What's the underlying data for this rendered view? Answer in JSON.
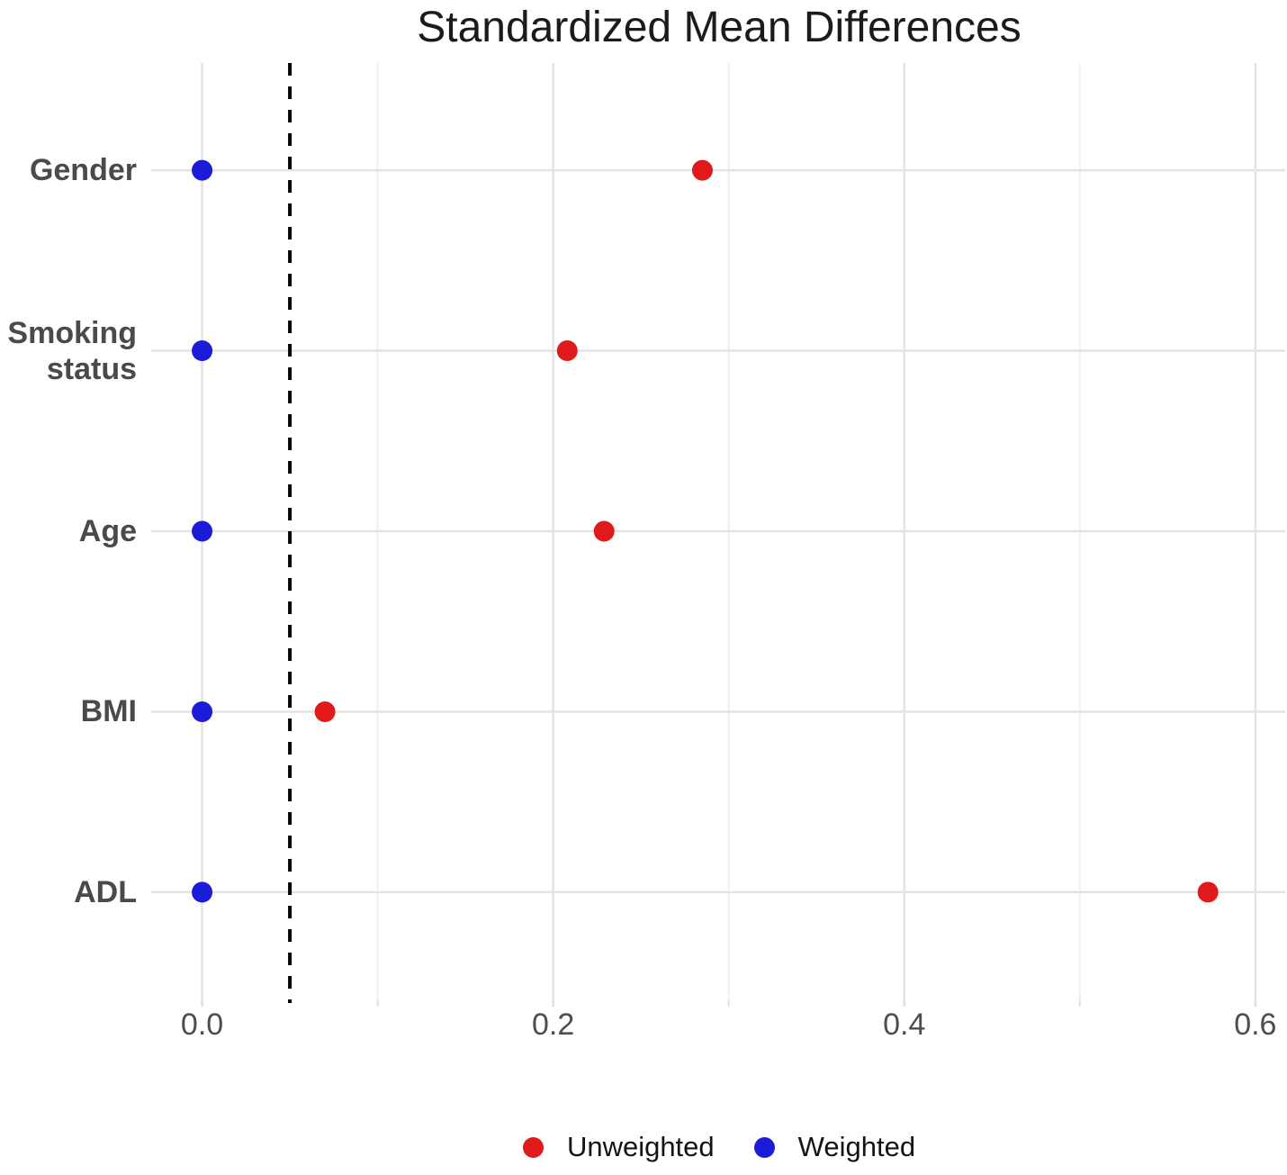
{
  "title": "Standardized Mean Differences",
  "colors": {
    "unweighted": "#e01a1b",
    "weighted": "#1b1bd8",
    "grid_major": "#e3e3e3",
    "grid_minor": "#f0f0f0",
    "axis_tick": "#e0e0e0",
    "threshold_line": "#000000",
    "axis_text": "#4d4d4d",
    "category_text": "#4a4a4a",
    "background": "#ffffff"
  },
  "chart_data": {
    "type": "scatter",
    "title": "Standardized Mean Differences",
    "orientation": "dot-plot-horizontal",
    "categories": [
      "Gender",
      "Smoking\nstatus",
      "Age",
      "BMI",
      "ADL"
    ],
    "series": [
      {
        "name": "Unweighted",
        "color_key": "unweighted",
        "values": [
          0.285,
          0.208,
          0.229,
          0.07,
          0.573
        ]
      },
      {
        "name": "Weighted",
        "color_key": "weighted",
        "values": [
          0.0,
          0.0,
          0.0,
          0.0,
          0.0
        ]
      }
    ],
    "x_axis": {
      "min": -0.029,
      "max": 0.617,
      "major_ticks": [
        0.0,
        0.2,
        0.4,
        0.6
      ],
      "tick_labels": [
        "0.0",
        "0.2",
        "0.4",
        "0.6"
      ],
      "minor_ticks": [
        0.1,
        0.3,
        0.5
      ]
    },
    "threshold": 0.05,
    "grid": true,
    "legend_position": "bottom"
  },
  "legend": {
    "items": [
      {
        "label": "Unweighted",
        "color_key": "unweighted"
      },
      {
        "label": "Weighted",
        "color_key": "weighted"
      }
    ]
  }
}
